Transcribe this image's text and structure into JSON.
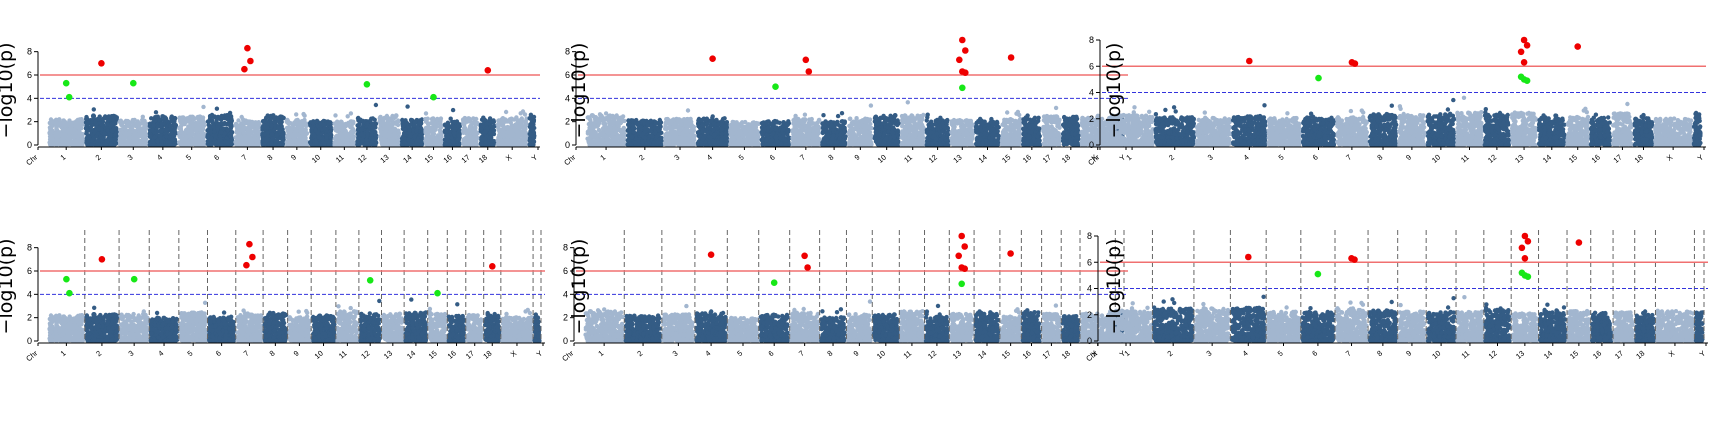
{
  "chart_data": [
    {
      "type": "scatter",
      "panel": "top-left",
      "ylabel": "−log10(p)",
      "ylim": [
        0,
        9
      ],
      "yticks": [
        0,
        2,
        4,
        6,
        8
      ],
      "xticks": [
        "Chr",
        "1",
        "2",
        "3",
        "4",
        "5",
        "6",
        "7",
        "8",
        "9",
        "10",
        "11",
        "12",
        "13",
        "14",
        "15",
        "16",
        "17",
        "18",
        "X",
        "Y"
      ],
      "threshold_solid": 6,
      "threshold_dashed": 4,
      "chromosome_separators": false,
      "colors": {
        "light": "#a2b6cf",
        "dark": "#345c85",
        "significant": "#ee0000",
        "suggestive": "#17e817",
        "solid_line": "#f07070",
        "dashed_line": "#3333dd"
      },
      "significant_points": [
        {
          "chr": "2",
          "y": 7.0
        },
        {
          "chr": "7",
          "y": 8.3
        },
        {
          "chr": "7",
          "y": 7.2
        },
        {
          "chr": "7",
          "y": 6.5
        },
        {
          "chr": "18",
          "y": 6.4
        }
      ],
      "suggestive_points": [
        {
          "chr": "1",
          "y": 5.3
        },
        {
          "chr": "1",
          "y": 4.1
        },
        {
          "chr": "3",
          "y": 5.3
        },
        {
          "chr": "12",
          "y": 5.2
        },
        {
          "chr": "15",
          "y": 4.1
        }
      ]
    },
    {
      "type": "scatter",
      "panel": "top-middle",
      "ylabel": "−log10(p)",
      "ylim": [
        0,
        9
      ],
      "yticks": [
        0,
        2,
        4,
        6,
        8
      ],
      "xticks": [
        "Chr",
        "1",
        "2",
        "3",
        "4",
        "5",
        "6",
        "7",
        "8",
        "9",
        "10",
        "11",
        "12",
        "13",
        "14",
        "15",
        "16",
        "17",
        "18",
        "X",
        "Y"
      ],
      "threshold_solid": 6,
      "threshold_dashed": 4,
      "chromosome_separators": false,
      "colors": {
        "light": "#a2b6cf",
        "dark": "#345c85",
        "significant": "#ee0000",
        "suggestive": "#17e817",
        "solid_line": "#f07070",
        "dashed_line": "#3333dd"
      },
      "significant_points": [
        {
          "chr": "4",
          "y": 7.4
        },
        {
          "chr": "7",
          "y": 7.3
        },
        {
          "chr": "7",
          "y": 6.3
        },
        {
          "chr": "13",
          "y": 9.0
        },
        {
          "chr": "13",
          "y": 8.1
        },
        {
          "chr": "13",
          "y": 7.3
        },
        {
          "chr": "13",
          "y": 6.3
        },
        {
          "chr": "13",
          "y": 6.2
        },
        {
          "chr": "15",
          "y": 7.5
        }
      ],
      "suggestive_points": [
        {
          "chr": "6",
          "y": 5.0
        },
        {
          "chr": "13",
          "y": 4.9
        }
      ]
    },
    {
      "type": "scatter",
      "panel": "top-right",
      "ylabel": "−log10(p)",
      "ylim": [
        0,
        8
      ],
      "yticks": [
        0,
        2,
        4,
        6,
        8
      ],
      "xticks": [
        "Chr",
        "1",
        "2",
        "3",
        "4",
        "5",
        "6",
        "7",
        "8",
        "9",
        "10",
        "11",
        "12",
        "13",
        "14",
        "15",
        "16",
        "17",
        "18",
        "X",
        "Y"
      ],
      "threshold_solid": 6,
      "threshold_dashed": 4,
      "chromosome_separators": false,
      "colors": {
        "light": "#a2b6cf",
        "dark": "#345c85",
        "significant": "#ee0000",
        "suggestive": "#17e817",
        "solid_line": "#f07070",
        "dashed_line": "#3333dd"
      },
      "significant_points": [
        {
          "chr": "4",
          "y": 6.4
        },
        {
          "chr": "7",
          "y": 6.3
        },
        {
          "chr": "7",
          "y": 6.2
        },
        {
          "chr": "13",
          "y": 8.0
        },
        {
          "chr": "13",
          "y": 7.6
        },
        {
          "chr": "13",
          "y": 7.1
        },
        {
          "chr": "13",
          "y": 6.3
        },
        {
          "chr": "15",
          "y": 7.5
        }
      ],
      "suggestive_points": [
        {
          "chr": "6",
          "y": 5.1
        },
        {
          "chr": "13",
          "y": 5.0
        },
        {
          "chr": "13",
          "y": 4.9
        },
        {
          "chr": "13",
          "y": 5.2
        }
      ]
    },
    {
      "type": "scatter",
      "panel": "bottom-left",
      "ylabel": "−log10(p)",
      "ylim": [
        0,
        9
      ],
      "yticks": [
        0,
        2,
        4,
        6,
        8
      ],
      "xticks": [
        "Chr",
        "1",
        "2",
        "3",
        "4",
        "5",
        "6",
        "7",
        "8",
        "9",
        "10",
        "11",
        "12",
        "13",
        "14",
        "15",
        "16",
        "17",
        "18",
        "X",
        "Y"
      ],
      "threshold_solid": 6,
      "threshold_dashed": 4,
      "chromosome_separators": true,
      "colors": {
        "light": "#a2b6cf",
        "dark": "#345c85",
        "significant": "#ee0000",
        "suggestive": "#17e817",
        "solid_line": "#f07070",
        "dashed_line": "#3333dd"
      },
      "significant_points": [
        {
          "chr": "2",
          "y": 7.0
        },
        {
          "chr": "7",
          "y": 8.3
        },
        {
          "chr": "7",
          "y": 7.2
        },
        {
          "chr": "7",
          "y": 6.5
        },
        {
          "chr": "18",
          "y": 6.4
        }
      ],
      "suggestive_points": [
        {
          "chr": "1",
          "y": 5.3
        },
        {
          "chr": "1",
          "y": 4.1
        },
        {
          "chr": "3",
          "y": 5.3
        },
        {
          "chr": "12",
          "y": 5.2
        },
        {
          "chr": "15",
          "y": 4.1
        }
      ]
    },
    {
      "type": "scatter",
      "panel": "bottom-middle",
      "ylabel": "−log10(p)",
      "ylim": [
        0,
        9
      ],
      "yticks": [
        0,
        2,
        4,
        6,
        8
      ],
      "xticks": [
        "Chr",
        "1",
        "2",
        "3",
        "4",
        "5",
        "6",
        "7",
        "8",
        "9",
        "10",
        "11",
        "12",
        "13",
        "14",
        "15",
        "16",
        "17",
        "18",
        "X",
        "Y"
      ],
      "threshold_solid": 6,
      "threshold_dashed": 4,
      "chromosome_separators": true,
      "colors": {
        "light": "#a2b6cf",
        "dark": "#345c85",
        "significant": "#ee0000",
        "suggestive": "#17e817",
        "solid_line": "#f07070",
        "dashed_line": "#3333dd"
      },
      "significant_points": [
        {
          "chr": "4",
          "y": 7.4
        },
        {
          "chr": "7",
          "y": 7.3
        },
        {
          "chr": "7",
          "y": 6.3
        },
        {
          "chr": "13",
          "y": 9.0
        },
        {
          "chr": "13",
          "y": 8.1
        },
        {
          "chr": "13",
          "y": 7.3
        },
        {
          "chr": "13",
          "y": 6.3
        },
        {
          "chr": "13",
          "y": 6.2
        },
        {
          "chr": "15",
          "y": 7.5
        }
      ],
      "suggestive_points": [
        {
          "chr": "6",
          "y": 5.0
        },
        {
          "chr": "13",
          "y": 4.9
        }
      ]
    },
    {
      "type": "scatter",
      "panel": "bottom-right",
      "ylabel": "−log10(p)",
      "ylim": [
        0,
        8
      ],
      "yticks": [
        0,
        2,
        4,
        6,
        8
      ],
      "xticks": [
        "Chr",
        "1",
        "2",
        "3",
        "4",
        "5",
        "6",
        "7",
        "8",
        "9",
        "10",
        "11",
        "12",
        "13",
        "14",
        "15",
        "16",
        "17",
        "18",
        "X",
        "Y"
      ],
      "threshold_solid": 6,
      "threshold_dashed": 4,
      "chromosome_separators": true,
      "colors": {
        "light": "#a2b6cf",
        "dark": "#345c85",
        "significant": "#ee0000",
        "suggestive": "#17e817",
        "solid_line": "#f07070",
        "dashed_line": "#3333dd"
      },
      "significant_points": [
        {
          "chr": "4",
          "y": 6.4
        },
        {
          "chr": "7",
          "y": 6.3
        },
        {
          "chr": "7",
          "y": 6.2
        },
        {
          "chr": "13",
          "y": 8.0
        },
        {
          "chr": "13",
          "y": 7.6
        },
        {
          "chr": "13",
          "y": 7.1
        },
        {
          "chr": "13",
          "y": 6.3
        },
        {
          "chr": "15",
          "y": 7.5
        }
      ],
      "suggestive_points": [
        {
          "chr": "6",
          "y": 5.1
        },
        {
          "chr": "13",
          "y": 5.0
        },
        {
          "chr": "13",
          "y": 4.9
        },
        {
          "chr": "13",
          "y": 5.2
        }
      ]
    }
  ]
}
